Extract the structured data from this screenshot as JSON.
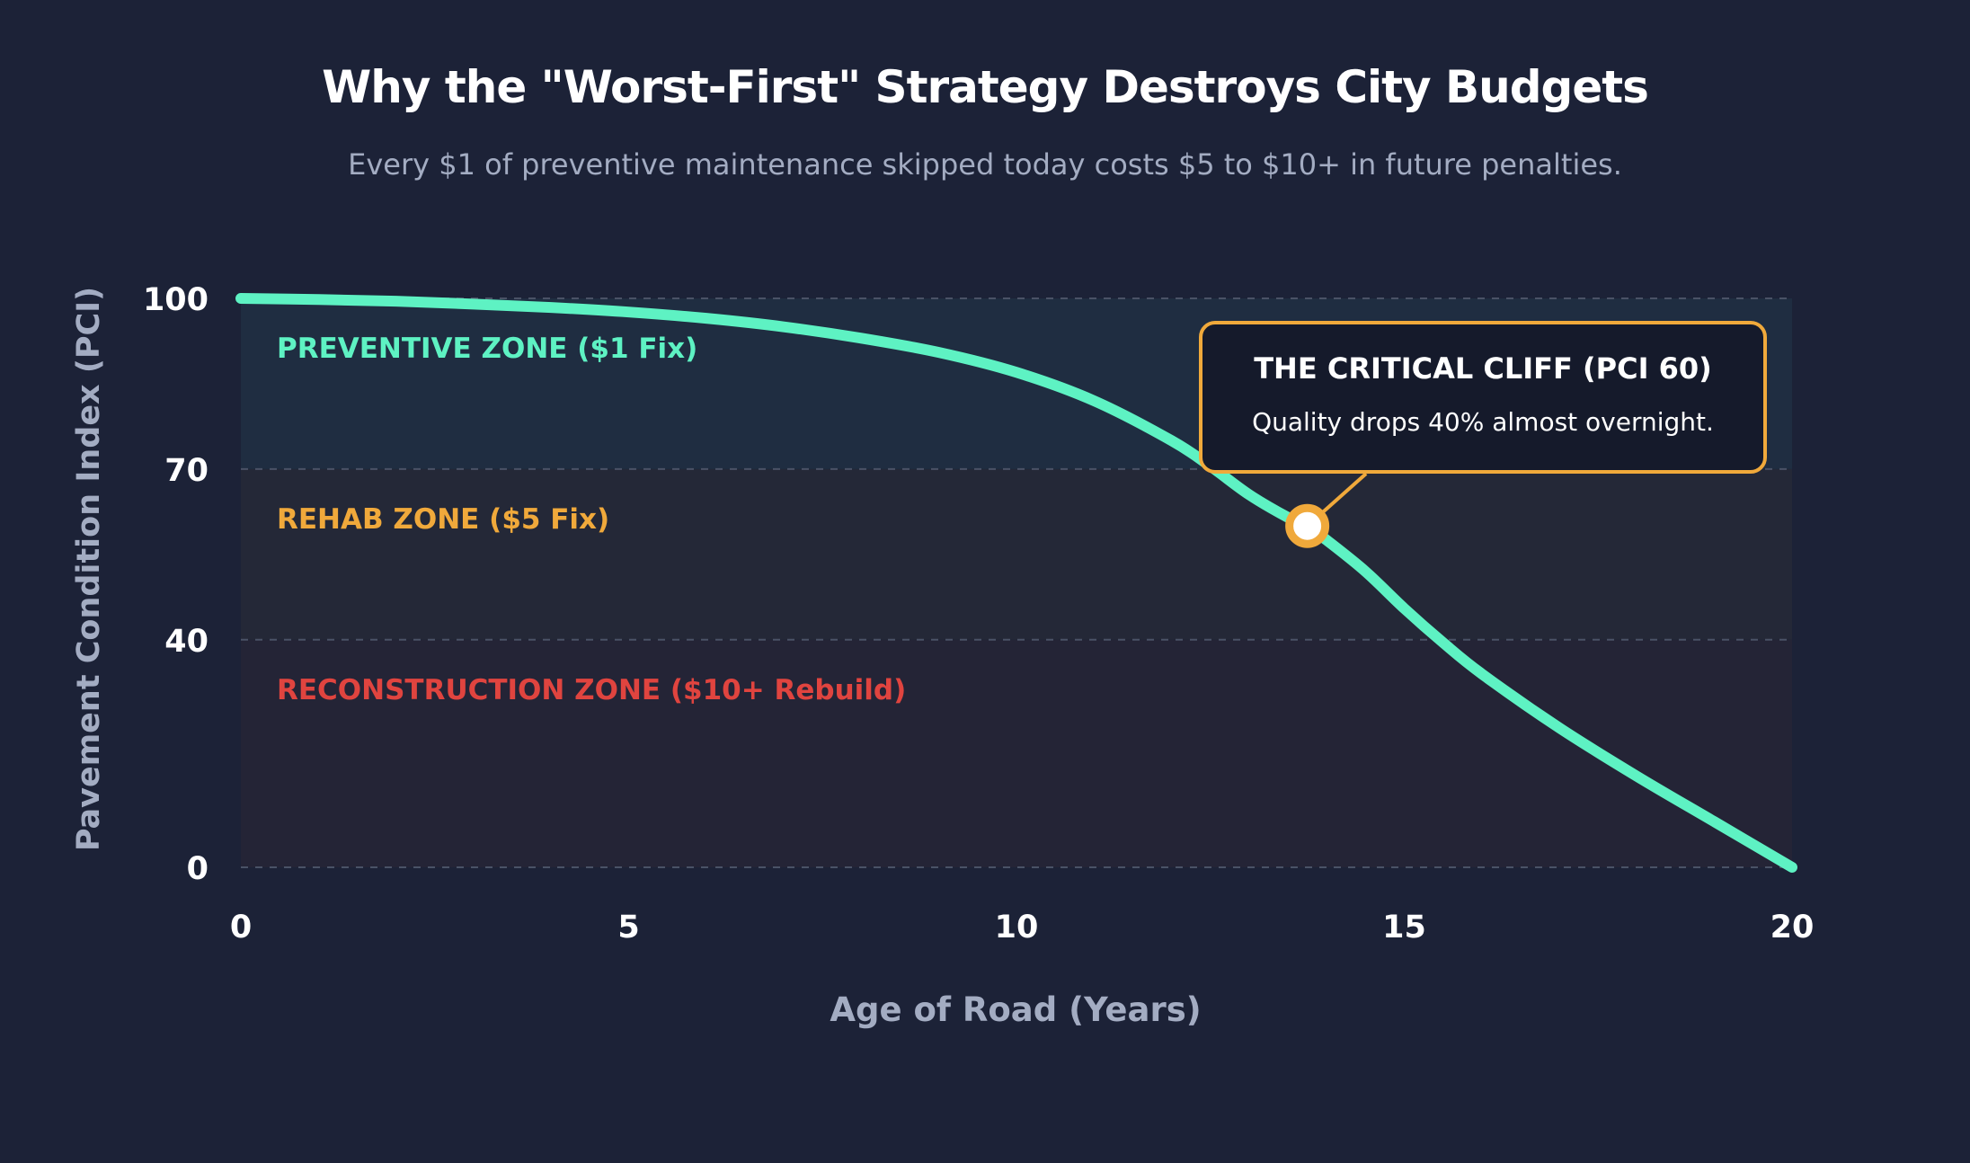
{
  "title": "Why the \"Worst-First\" Strategy Destroys City Budgets",
  "subtitle": "Every $1 of preventive maintenance skipped today costs $5 to $10+ in future penalties.",
  "colors": {
    "background": "#1c2237",
    "curve": "#5ef2c3",
    "preventive": "#5ef2c3",
    "rehab": "#f0a93b",
    "reconstruction": "#e0443f",
    "axis_label": "#a3acc2",
    "tick": "#ffffff",
    "callout_border": "#f0a93b"
  },
  "chart_data": {
    "type": "line",
    "title": "Why the \"Worst-First\" Strategy Destroys City Budgets",
    "subtitle": "Every $1 of preventive maintenance skipped today costs $5 to $10+ in future penalties.",
    "xlabel": "Age of Road (Years)",
    "ylabel": "Pavement Condition Index (PCI)",
    "xlim": [
      0,
      20
    ],
    "ylim": [
      0,
      100
    ],
    "xticks": [
      0,
      5,
      10,
      15,
      20
    ],
    "yticks": [
      0,
      40,
      70,
      100
    ],
    "grid": "horizontal dashed",
    "series": [
      {
        "x": [
          0,
          1,
          2,
          3,
          4,
          5,
          6,
          7,
          8,
          9,
          10,
          11,
          12,
          12.5,
          13,
          13.5,
          13.75,
          14,
          14.5,
          15,
          15.5,
          16,
          17,
          18,
          19,
          20
        ],
        "y": [
          100,
          99.8,
          99.5,
          99,
          98.4,
          97.6,
          96.5,
          95,
          93,
          90.5,
          87,
          82,
          75,
          70.5,
          65.5,
          61.5,
          60,
          57.5,
          52,
          45.5,
          39.5,
          34,
          24.5,
          16,
          8,
          0
        ]
      }
    ],
    "zones": [
      {
        "label": "PREVENTIVE ZONE ($1 Fix)",
        "from": 70,
        "to": 100,
        "color": "#5ef2c3"
      },
      {
        "label": "REHAB ZONE ($5 Fix)",
        "from": 40,
        "to": 70,
        "color": "#f0a93b"
      },
      {
        "label": "RECONSTRUCTION ZONE ($10+ Rebuild)",
        "from": 0,
        "to": 40,
        "color": "#e0443f"
      }
    ],
    "annotation": {
      "x": 13.75,
      "y": 60,
      "title": "THE CRITICAL CLIFF (PCI 60)",
      "text": "Quality drops 40% almost overnight."
    }
  }
}
